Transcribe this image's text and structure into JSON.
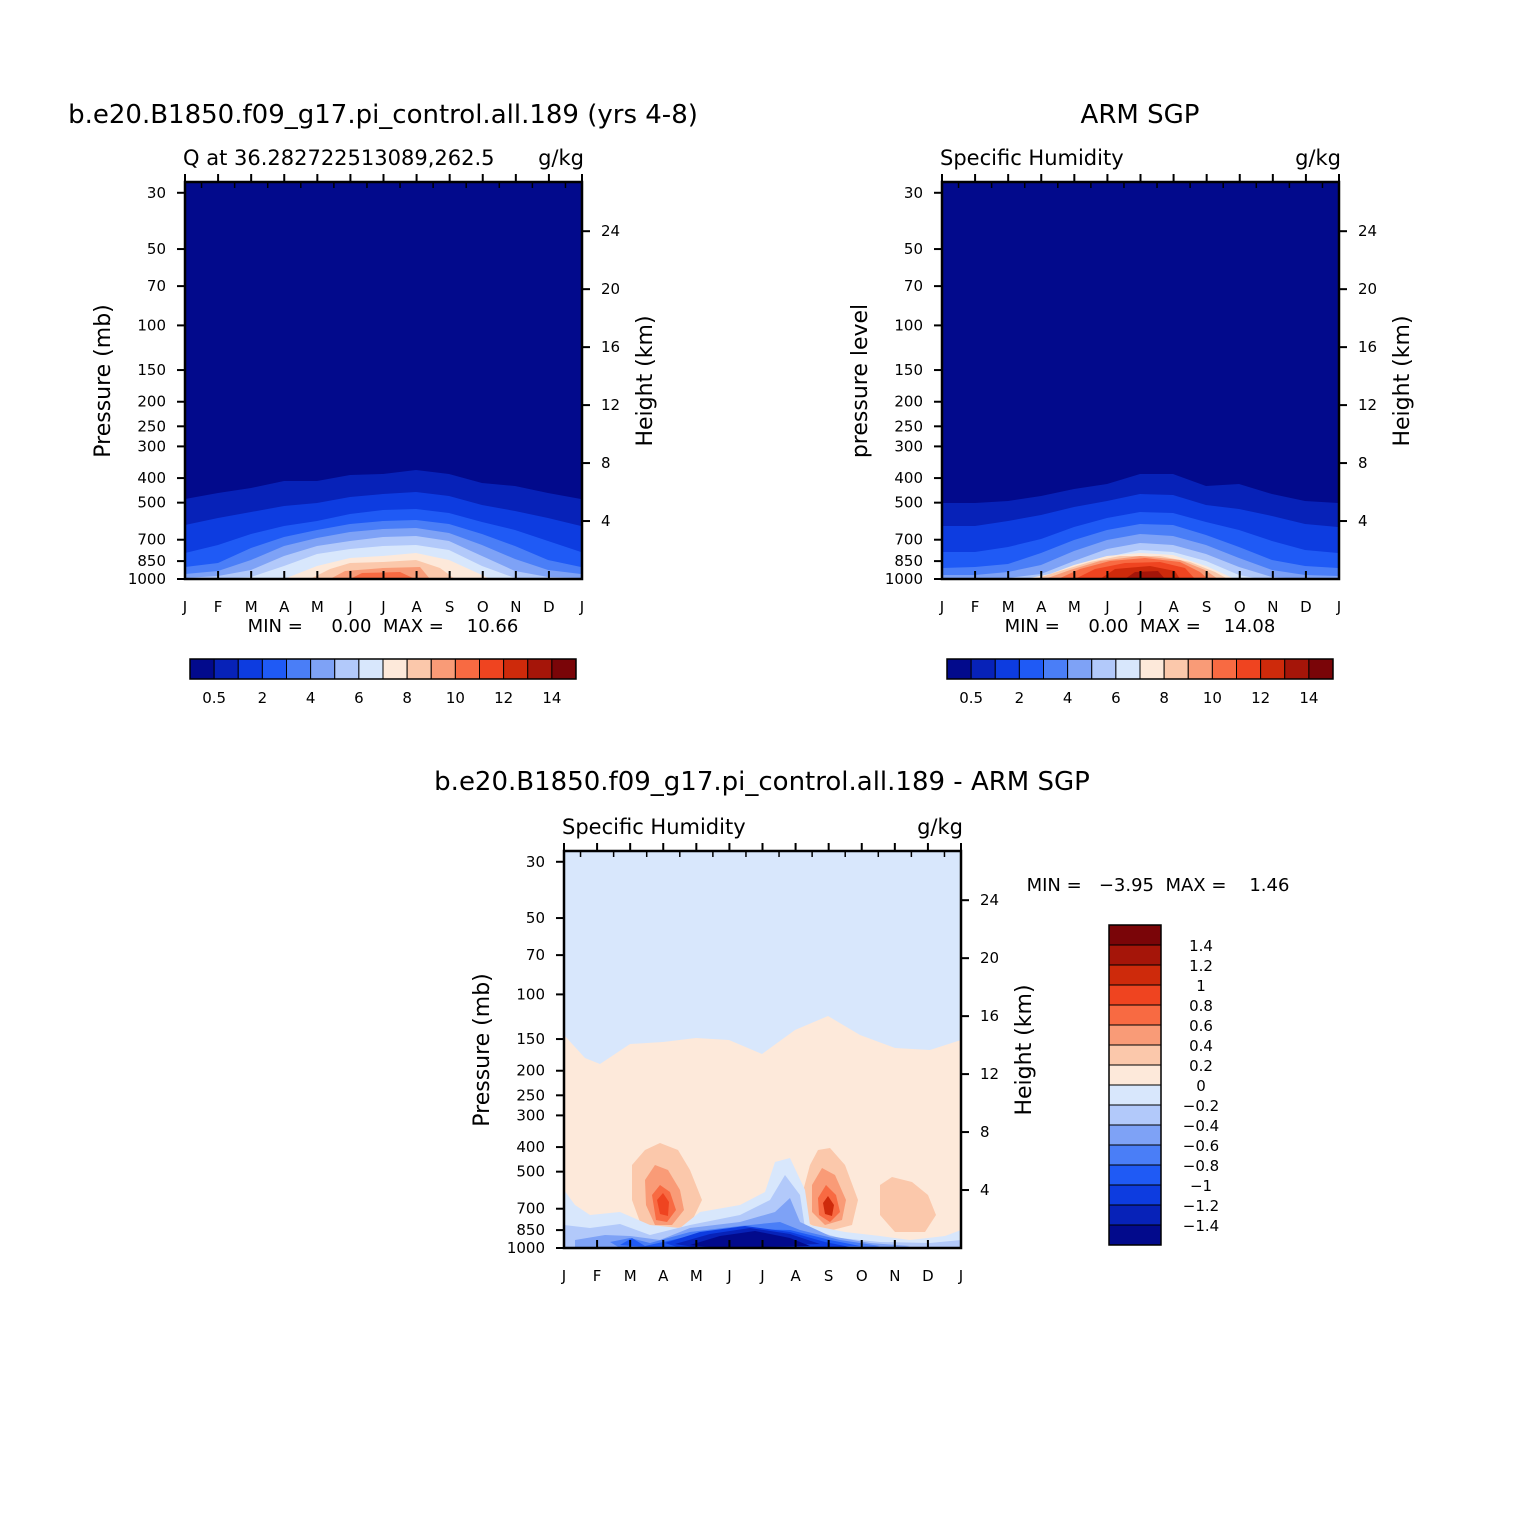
{
  "chart_data": [
    {
      "type": "heatmap",
      "title": "b.e20.B1850.f09_g17.pi_control.all.189 (yrs 4-8)",
      "subtitle_left": "Q at 36.282722513089,262.5",
      "subtitle_right": "g/kg",
      "ylabel": "Pressure (mb)",
      "y2label": "Height (km)",
      "x": [
        "J",
        "F",
        "M",
        "A",
        "M",
        "J",
        "J",
        "A",
        "S",
        "O",
        "N",
        "D",
        "J"
      ],
      "y_ticks": [
        "30",
        "50",
        "70",
        "100",
        "150",
        "200",
        "250",
        "300",
        "400",
        "500",
        "700",
        "850",
        "1000"
      ],
      "y2_ticks": [
        "24",
        "20",
        "16",
        "12",
        "8",
        "4"
      ],
      "stats_label": "MIN =     0.00  MAX =    10.66",
      "min": 0.0,
      "max": 10.66,
      "colorbar_ticks": [
        "0.5",
        "2",
        "4",
        "6",
        "8",
        "10",
        "12",
        "14"
      ],
      "colorbar_colors": [
        "#020a8c",
        "#0722b8",
        "#0d3ce0",
        "#1f5af5",
        "#4a7ef7",
        "#7ea2f6",
        "#b2c9fa",
        "#d8e7fc",
        "#fde9da",
        "#fbc8ab",
        "#f99b77",
        "#f86a42",
        "#ef4420",
        "#ce2a0b",
        "#a51509",
        "#7a0508"
      ],
      "surface_profile": [
        5.5,
        6.0,
        7.0,
        8.0,
        9.0,
        10.3,
        10.5,
        10.66,
        9.5,
        8.0,
        6.5,
        5.8,
        5.5
      ]
    },
    {
      "type": "heatmap",
      "title": "ARM SGP",
      "subtitle_left": "Specific Humidity",
      "subtitle_right": "g/kg",
      "ylabel": "pressure level",
      "y2label": "Height (km)",
      "x": [
        "J",
        "F",
        "M",
        "A",
        "M",
        "J",
        "J",
        "A",
        "S",
        "O",
        "N",
        "D",
        "J"
      ],
      "y_ticks": [
        "30",
        "50",
        "70",
        "100",
        "150",
        "200",
        "250",
        "300",
        "400",
        "500",
        "700",
        "850",
        "1000"
      ],
      "y2_ticks": [
        "24",
        "20",
        "16",
        "12",
        "8",
        "4"
      ],
      "stats_label": "MIN =     0.00  MAX =    14.08",
      "min": 0.0,
      "max": 14.08,
      "colorbar_ticks": [
        "0.5",
        "2",
        "4",
        "6",
        "8",
        "10",
        "12",
        "14"
      ],
      "colorbar_colors": [
        "#020a8c",
        "#0722b8",
        "#0d3ce0",
        "#1f5af5",
        "#4a7ef7",
        "#7ea2f6",
        "#b2c9fa",
        "#d8e7fc",
        "#fde9da",
        "#fbc8ab",
        "#f99b77",
        "#f86a42",
        "#ef4420",
        "#ce2a0b",
        "#a51509",
        "#7a0508"
      ],
      "surface_profile": [
        5.0,
        5.5,
        6.5,
        8.5,
        10.5,
        13.0,
        14.08,
        13.5,
        11.0,
        8.5,
        6.5,
        5.5,
        5.0
      ]
    },
    {
      "type": "heatmap",
      "title": "b.e20.B1850.f09_g17.pi_control.all.189 - ARM SGP",
      "subtitle_left": "Specific Humidity",
      "subtitle_right": "g/kg",
      "ylabel": "Pressure (mb)",
      "y2label": "Height (km)",
      "x": [
        "J",
        "F",
        "M",
        "A",
        "M",
        "J",
        "J",
        "A",
        "S",
        "O",
        "N",
        "D",
        "J"
      ],
      "y_ticks": [
        "30",
        "50",
        "70",
        "100",
        "150",
        "200",
        "250",
        "300",
        "400",
        "500",
        "700",
        "850",
        "1000"
      ],
      "y2_ticks": [
        "24",
        "20",
        "16",
        "12",
        "8",
        "4"
      ],
      "stats_label": "MIN =   −3.95  MAX =    1.46",
      "min": -3.95,
      "max": 1.46,
      "colorbar_ticks": [
        "1.4",
        "1.2",
        "1",
        "0.8",
        "0.6",
        "0.4",
        "0.2",
        "0",
        "−0.2",
        "−0.4",
        "−0.6",
        "−0.8",
        "−1",
        "−1.2",
        "−1.4"
      ],
      "colorbar_colors": [
        "#7a0508",
        "#a51509",
        "#ce2a0b",
        "#ef4420",
        "#f86a42",
        "#f99b77",
        "#fbc8ab",
        "#fde9da",
        "#d8e7fc",
        "#b2c9fa",
        "#7ea2f6",
        "#4a7ef7",
        "#1f5af5",
        "#0d3ce0",
        "#0722b8",
        "#020a8c"
      ]
    }
  ]
}
